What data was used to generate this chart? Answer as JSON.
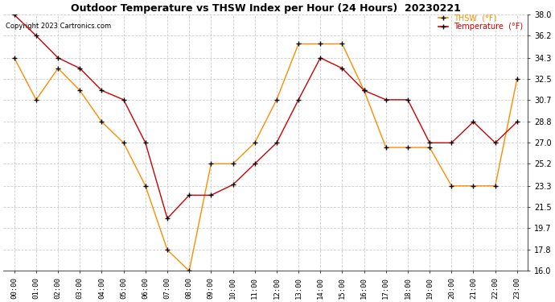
{
  "title": "Outdoor Temperature vs THSW Index per Hour (24 Hours)  20230221",
  "copyright": "Copyright 2023 Cartronics.com",
  "hours": [
    "00:00",
    "01:00",
    "02:00",
    "03:00",
    "04:00",
    "05:00",
    "06:00",
    "07:00",
    "08:00",
    "09:00",
    "10:00",
    "11:00",
    "12:00",
    "13:00",
    "14:00",
    "15:00",
    "16:00",
    "17:00",
    "18:00",
    "19:00",
    "20:00",
    "21:00",
    "22:00",
    "23:00"
  ],
  "temperature": [
    38.0,
    36.2,
    34.3,
    33.4,
    31.5,
    30.7,
    27.0,
    20.5,
    22.5,
    22.5,
    23.4,
    25.2,
    27.0,
    30.7,
    34.3,
    33.4,
    31.5,
    30.7,
    30.7,
    27.0,
    27.0,
    28.8,
    27.0,
    28.8
  ],
  "thsw": [
    34.3,
    30.7,
    33.4,
    31.5,
    28.8,
    27.0,
    23.3,
    17.8,
    16.0,
    25.2,
    25.2,
    27.0,
    30.7,
    35.5,
    35.5,
    35.5,
    31.5,
    26.6,
    26.6,
    26.6,
    23.3,
    23.3,
    23.3,
    32.5
  ],
  "temp_color": "#cc0000",
  "thsw_color": "#ff8c00",
  "marker": "+",
  "marker_color": "black",
  "marker_size": 4,
  "linewidth": 1.0,
  "ylim": [
    16.0,
    38.0
  ],
  "yticks": [
    16.0,
    17.8,
    19.7,
    21.5,
    23.3,
    25.2,
    27.0,
    28.8,
    30.7,
    32.5,
    34.3,
    36.2,
    38.0
  ],
  "legend_thsw": "THSW  (°F)",
  "legend_temp": "Temperature  (°F)",
  "background_color": "#ffffff",
  "grid_color": "#cccccc",
  "fig_width": 6.9,
  "fig_height": 3.75,
  "dpi": 100
}
